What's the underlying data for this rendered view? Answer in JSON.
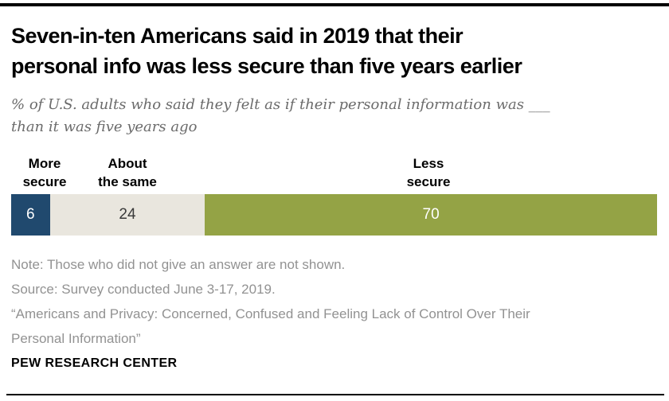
{
  "header": {
    "title_line1": "Seven-in-ten Americans said in 2019 that their",
    "title_line2": "personal info was less secure than five years earlier",
    "subtitle_line1": "% of U.S. adults who said they felt as if their personal information was ___",
    "subtitle_line2": "than it was five years ago"
  },
  "chart_data": {
    "type": "bar",
    "orientation": "horizontal-stacked",
    "title": "Seven-in-ten Americans said in 2019 that their personal info was less secure than five years earlier",
    "subtitle": "% of U.S. adults who said they felt as if their personal information was ___ than it was five years ago",
    "categories": [
      "More secure",
      "About the same",
      "Less secure"
    ],
    "values": [
      6,
      24,
      70
    ],
    "value_labels": [
      "6",
      "24",
      "70"
    ],
    "colors": [
      "#20496e",
      "#e9e6de",
      "#94a345"
    ],
    "value_label_colors": [
      "#ffffff",
      "#3a3a3a",
      "#ffffff"
    ],
    "xlim": [
      0,
      100
    ],
    "grid": false,
    "legend_position": "above-segments"
  },
  "segments": [
    {
      "label_line1": "More",
      "label_line2": "secure",
      "value": "6"
    },
    {
      "label_line1": "About",
      "label_line2": "the same",
      "value": "24"
    },
    {
      "label_line1": "Less",
      "label_line2": "secure",
      "value": "70"
    }
  ],
  "footer": {
    "note": "Note: Those who did not give an answer are not shown.",
    "source": "Source: Survey conducted June 3-17, 2019.",
    "quote_line1": "“Americans and Privacy: Concerned, Confused and Feeling Lack of Control Over Their",
    "quote_line2": "Personal Information”",
    "brand": "PEW RESEARCH CENTER"
  }
}
